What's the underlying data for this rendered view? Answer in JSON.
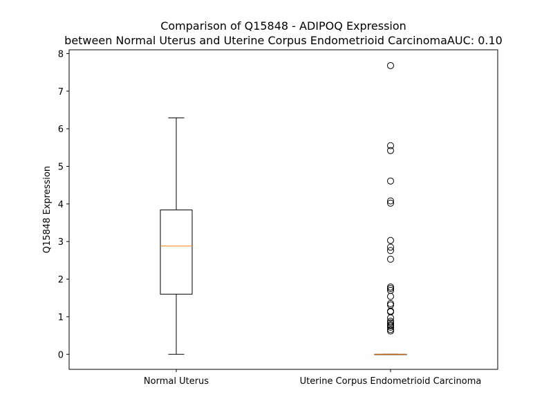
{
  "chart_data": {
    "type": "box",
    "title_line1": "Comparison of Q15848 - ADIPOQ Expression",
    "title_line2": "between Normal Uterus and Uterine Corpus Endometrioid CarcinomaAUC: 0.10",
    "xlabel": "",
    "ylabel": "Q15848 Expression",
    "ylim": [
      -0.4,
      8.1
    ],
    "yticks": [
      "0",
      "1",
      "2",
      "3",
      "4",
      "5",
      "6",
      "7",
      "8"
    ],
    "categories": [
      "Normal Uterus",
      "Uterine Corpus Endometrioid Carcinoma"
    ],
    "boxes": [
      {
        "name": "Normal Uterus",
        "whisker_low": 0.0,
        "q1": 1.6,
        "median": 2.88,
        "q3": 3.84,
        "whisker_high": 6.29,
        "outliers": []
      },
      {
        "name": "Uterine Corpus Endometrioid Carcinoma",
        "whisker_low": 0.0,
        "q1": 0.0,
        "median": 0.0,
        "q3": 0.0,
        "whisker_high": 0.0,
        "outliers": [
          7.68,
          5.55,
          5.42,
          4.61,
          4.08,
          4.02,
          3.03,
          2.85,
          2.76,
          2.53,
          1.79,
          1.75,
          1.7,
          1.54,
          1.35,
          1.31,
          1.15,
          1.13,
          0.97,
          0.88,
          0.84,
          0.79,
          0.76,
          0.72,
          0.66,
          0.62
        ]
      }
    ],
    "colors": {
      "box": "#000000",
      "median": "#ff7f0e",
      "outlier": "#000000"
    },
    "grid": false,
    "legend": "none"
  }
}
